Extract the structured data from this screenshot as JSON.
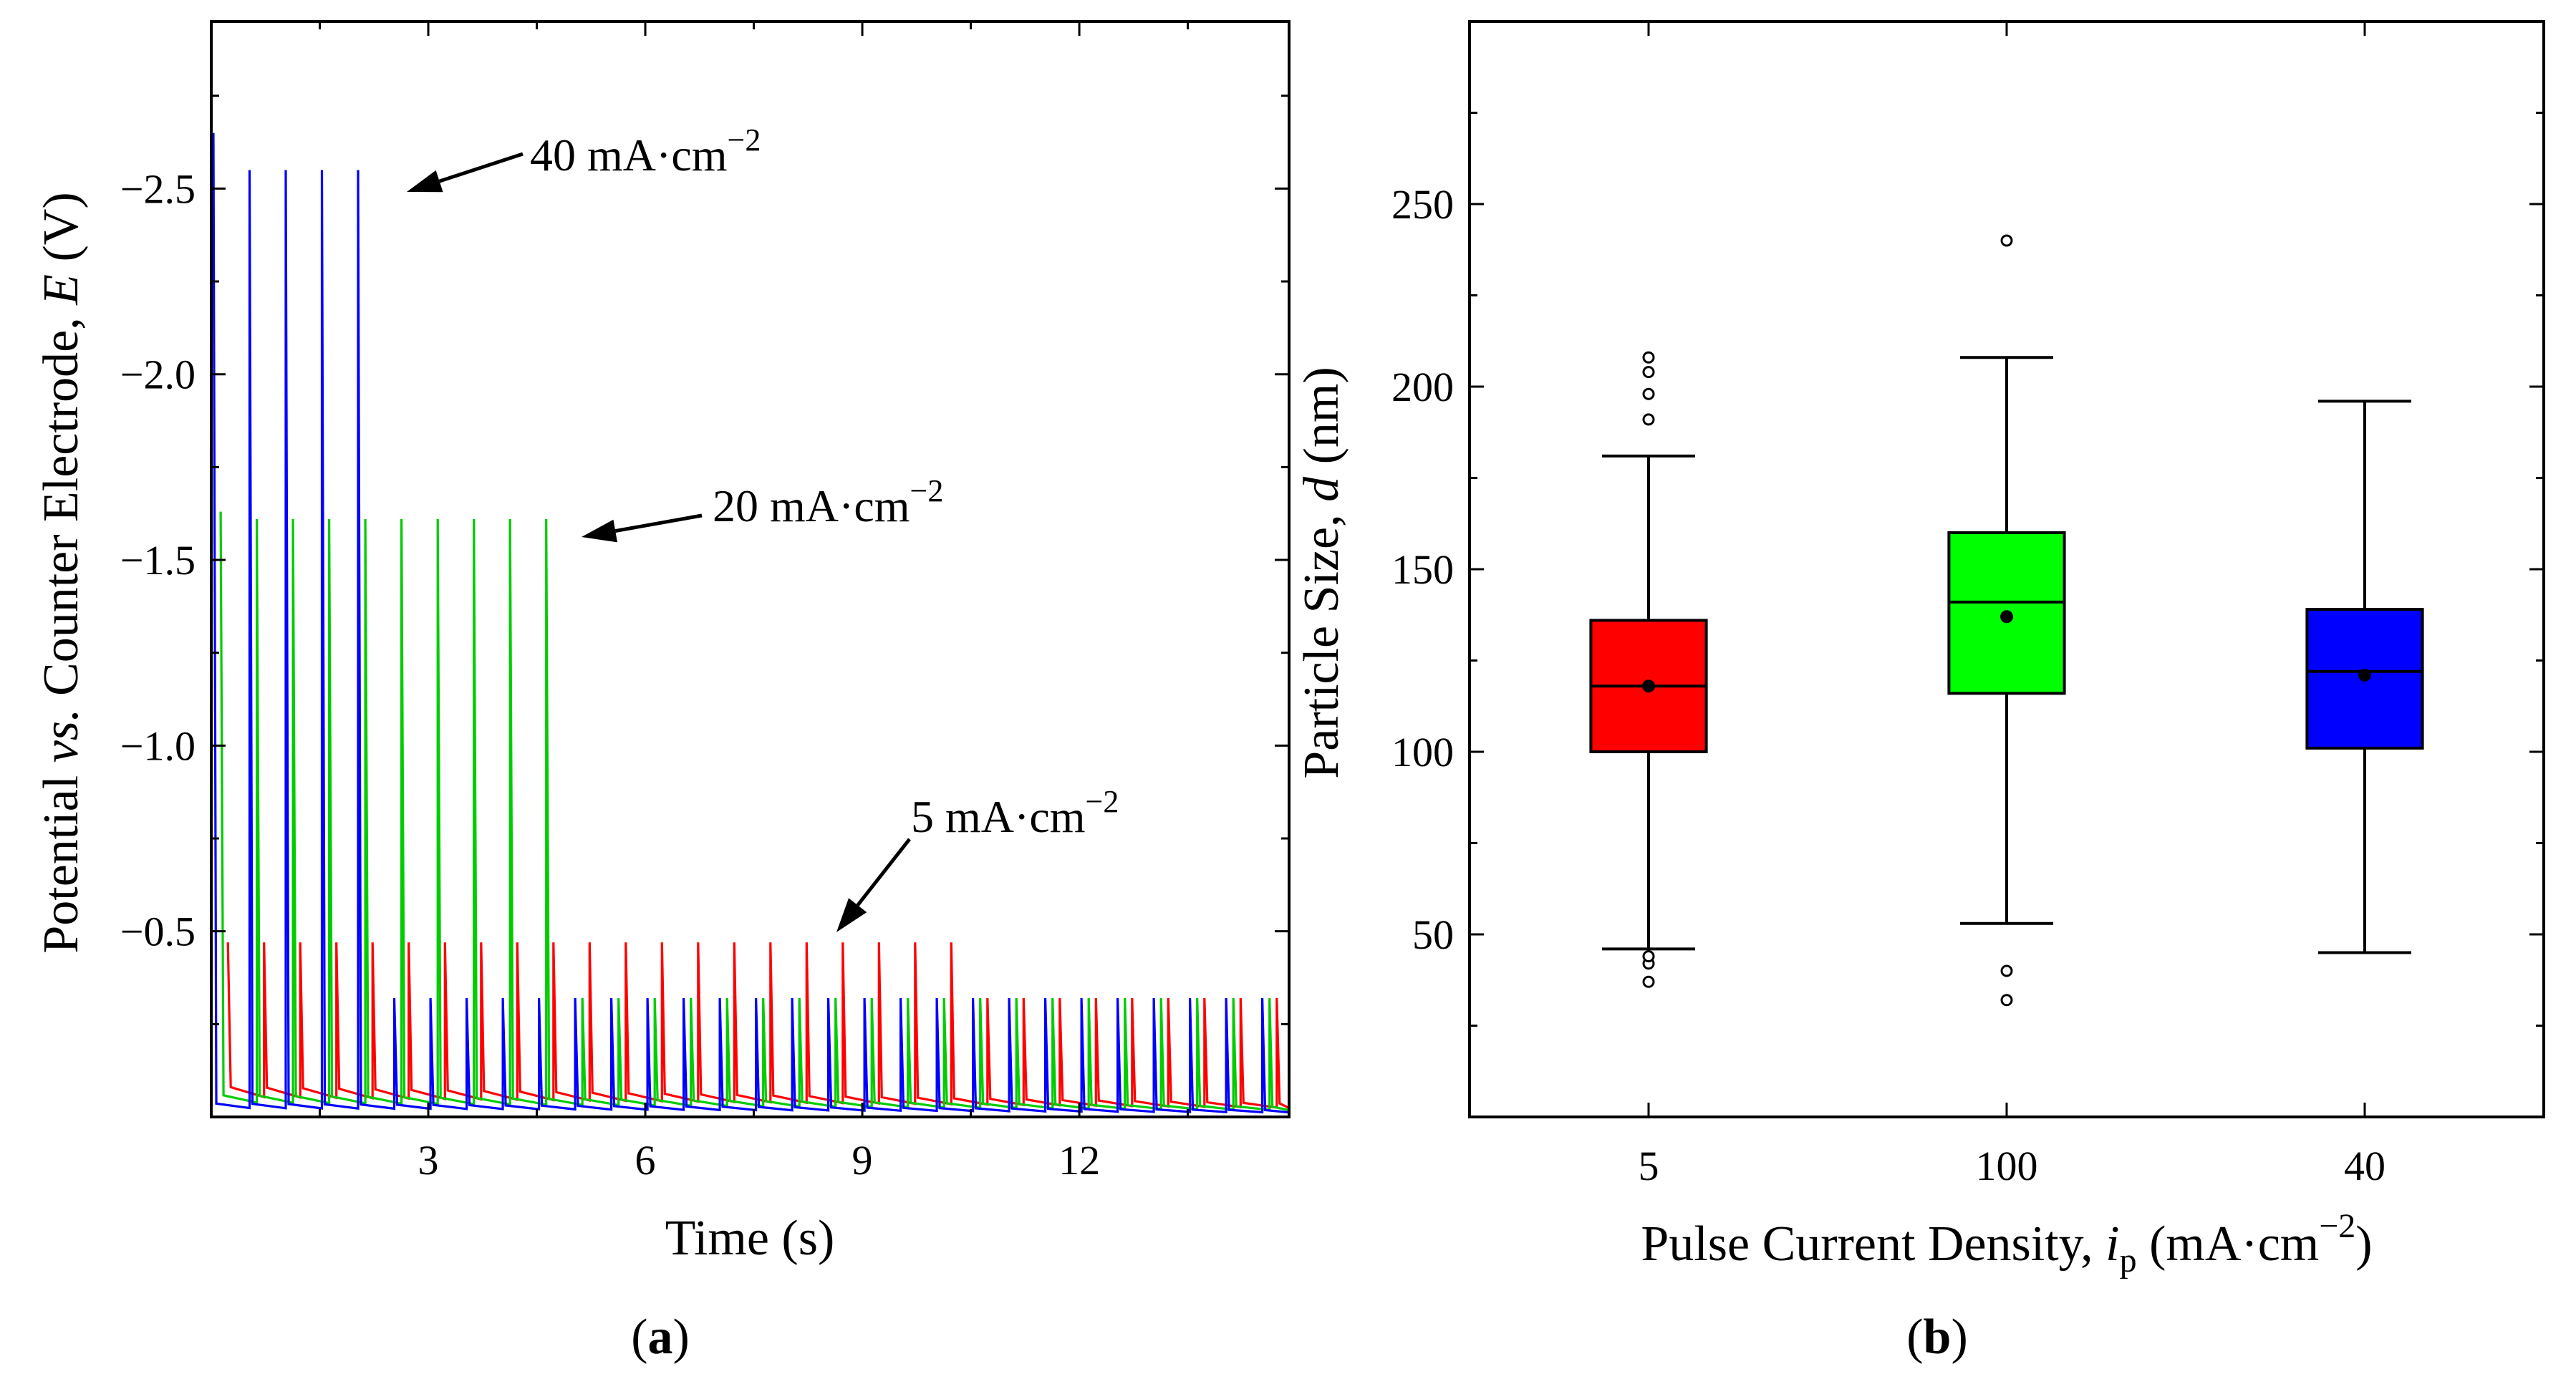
{
  "chart_data": [
    {
      "panel": "a",
      "panel_label": "(a)",
      "type": "line",
      "xlabel": "Time (s)",
      "ylabel": "Potential vs. Counter Electrode, E (V)",
      "ylabel_parts": [
        "Potential ",
        "vs.",
        " Counter Electrode, ",
        "E",
        " (V)"
      ],
      "xlim": [
        0,
        14.9
      ],
      "ylim": [
        0,
        -2.95
      ],
      "x_ticks": [
        3,
        6,
        9,
        12
      ],
      "x_tick_labels": [
        "3",
        "6",
        "9",
        "12"
      ],
      "y_ticks": [
        -0.5,
        -1.0,
        -1.5,
        -2.0,
        -2.5
      ],
      "y_tick_labels": [
        "−0.5",
        "−1.0",
        "−1.5",
        "−2.0",
        "−2.5"
      ],
      "series": [
        {
          "name": "40 mA·cm⁻²",
          "color": "#0000ff",
          "first_peak": -2.65,
          "peak": -2.55,
          "tail_peak": -0.32,
          "num_high": 5,
          "period": 0.5,
          "t0": 0.03,
          "end": 14.9,
          "baseline": -0.02
        },
        {
          "name": "20 mA·cm⁻²",
          "color": "#00cc00",
          "first_peak": -1.63,
          "peak": -1.61,
          "tail_peak": -0.32,
          "num_high": 10,
          "period": 0.5,
          "t0": 0.13,
          "end": 14.9,
          "baseline": -0.035
        },
        {
          "name": "5 mA·cm⁻²",
          "color": "#ff0000",
          "first_peak": -0.47,
          "peak": -0.47,
          "tail_peak": -0.32,
          "num_high": 21,
          "period": 0.5,
          "t0": 0.23,
          "end": 14.9,
          "baseline": -0.05
        }
      ],
      "annotations": [
        {
          "text": "40 mA·cm",
          "sup": "−2",
          "target_x": 2.7,
          "target_y": -2.55
        },
        {
          "text": "20 mA·cm",
          "sup": "−2",
          "target_x": 5.15,
          "target_y": -1.6
        },
        {
          "text": "5 mA·cm",
          "sup": "−2",
          "target_x": 8.55,
          "target_y": -0.5
        }
      ]
    },
    {
      "panel": "b",
      "panel_label": "(b)",
      "type": "box",
      "xlabel_parts": [
        "Pulse Current Density, ",
        "i",
        "p",
        " (mA·cm",
        "−2",
        ")"
      ],
      "ylabel_parts": [
        "Particle Size, ",
        "d",
        " (nm)"
      ],
      "ylim": [
        0,
        300
      ],
      "y_ticks": [
        50,
        100,
        150,
        200,
        250
      ],
      "y_tick_labels": [
        "50",
        "100",
        "150",
        "200",
        "250"
      ],
      "categories": [
        "5",
        "100",
        "40"
      ],
      "boxes": [
        {
          "category": "5",
          "color": "#ff0000",
          "whisker_low": 46,
          "q1": 100,
          "median": 118,
          "mean": 118,
          "q3": 136,
          "whisker_high": 181,
          "outliers": [
            37,
            42,
            44,
            191,
            198,
            204,
            208
          ]
        },
        {
          "category": "100",
          "color": "#00ff00",
          "whisker_low": 53,
          "q1": 116,
          "median": 141,
          "mean": 137,
          "q3": 160,
          "whisker_high": 208,
          "outliers": [
            32,
            40,
            240
          ]
        },
        {
          "category": "40",
          "color": "#0000ff",
          "whisker_low": 45,
          "q1": 101,
          "median": 122,
          "mean": 121,
          "q3": 139,
          "whisker_high": 196,
          "outliers": []
        }
      ]
    }
  ]
}
